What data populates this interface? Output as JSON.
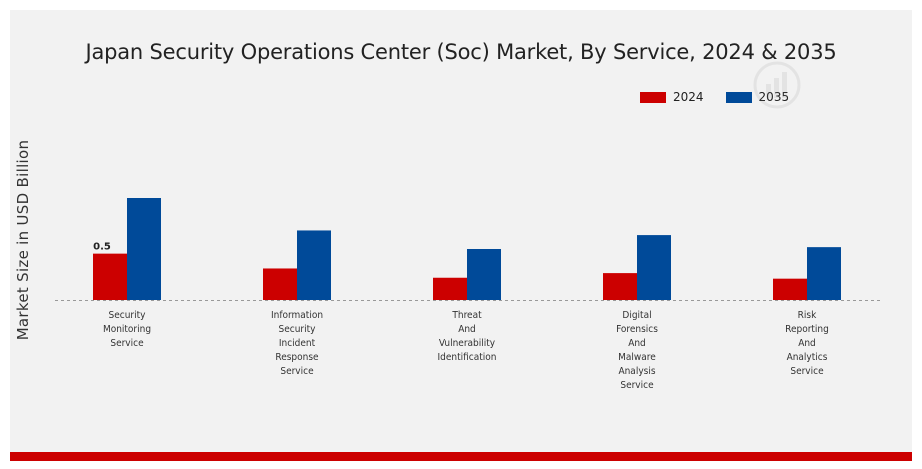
{
  "colors": {
    "series_2024": "#cc0000",
    "series_2035": "#004a99",
    "accent_bar": "#cc0000"
  },
  "chart_data": {
    "type": "bar",
    "title": "Japan Security Operations Center (Soc) Market, By Service, 2024 & 2035",
    "xlabel": "",
    "ylabel": "Market Size in USD Billion",
    "categories": [
      [
        "Security",
        "Monitoring",
        "Service"
      ],
      [
        "Information",
        "Security",
        "Incident",
        "Response",
        "Service"
      ],
      [
        "Threat",
        "And",
        "Vulnerability",
        "Identification"
      ],
      [
        "Digital",
        "Forensics",
        "And",
        "Malware",
        "Analysis",
        "Service"
      ],
      [
        "Risk",
        "Reporting",
        "And",
        "Analytics",
        "Service"
      ]
    ],
    "series": [
      {
        "name": "2024",
        "values": [
          0.5,
          0.34,
          0.24,
          0.29,
          0.23
        ]
      },
      {
        "name": "2035",
        "values": [
          1.1,
          0.75,
          0.55,
          0.7,
          0.57
        ]
      }
    ],
    "data_labels": [
      {
        "series": 0,
        "index": 0,
        "text": "0.5"
      }
    ],
    "ylim": [
      0,
      1.6
    ],
    "legend_position": "top-right",
    "grid": false
  }
}
